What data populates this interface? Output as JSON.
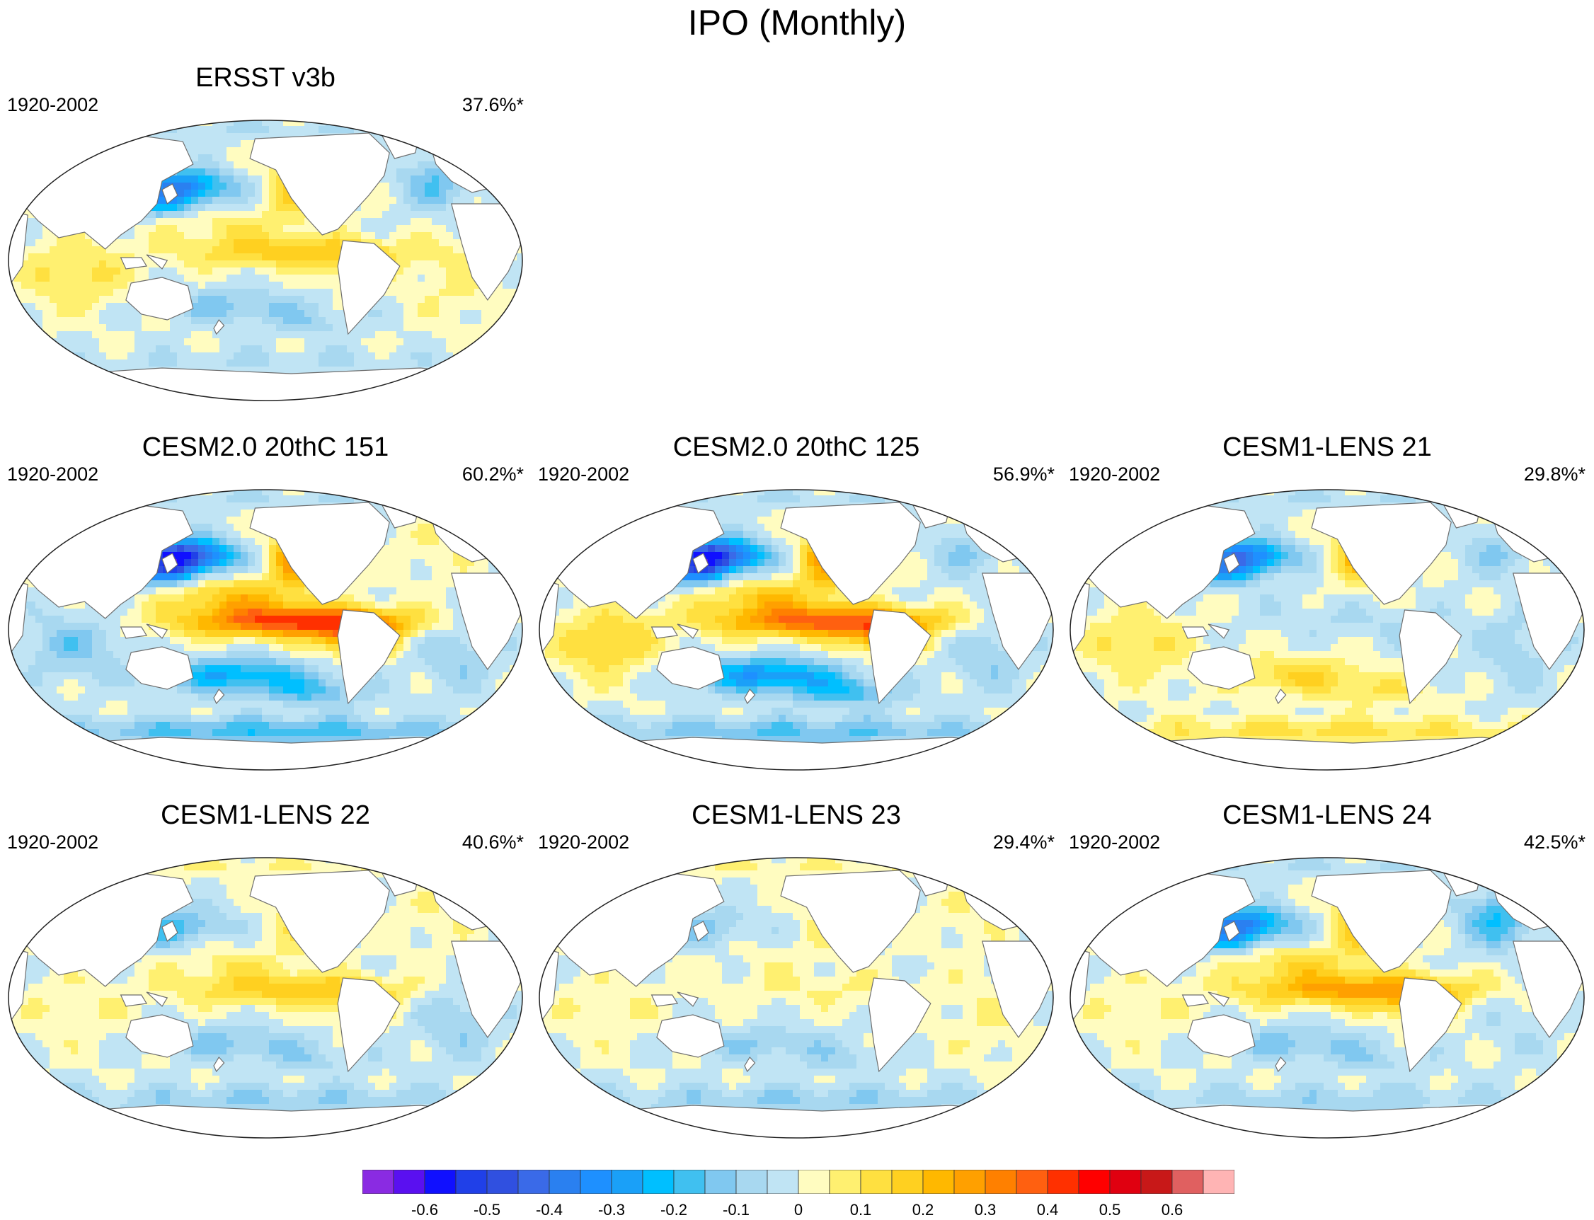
{
  "chart_data": {
    "type": "heatmap",
    "title": "IPO (Monthly)",
    "projection": "Robinson (Pacific-centered)",
    "panels": [
      {
        "title": "ERSST v3b",
        "period": "1920-2002",
        "variance": "37.6%*",
        "pattern": {
          "npac": -0.35,
          "trop": 0.18,
          "spac": -0.12,
          "ind": 0.12,
          "atl": 0.06,
          "natl": -0.15,
          "so": -0.05,
          "arctic": -0.05
        }
      },
      {
        "title": "CESM2.0 20thC 151",
        "period": "1920-2002",
        "variance": "60.2%*",
        "pattern": {
          "npac": -0.55,
          "trop": 0.42,
          "spac": -0.25,
          "ind": -0.12,
          "atl": -0.1,
          "natl": 0.05,
          "so": -0.18,
          "arctic": -0.05
        }
      },
      {
        "title": "CESM2.0 20thC 125",
        "period": "1920-2002",
        "variance": "56.9%*",
        "pattern": {
          "npac": -0.55,
          "trop": 0.38,
          "spac": -0.3,
          "ind": 0.15,
          "atl": -0.1,
          "natl": -0.1,
          "so": -0.15,
          "arctic": -0.05
        }
      },
      {
        "title": "CESM1-LENS 21",
        "period": "1920-2002",
        "variance": "29.8%*",
        "pattern": {
          "npac": -0.38,
          "trop": -0.05,
          "spac": 0.15,
          "ind": 0.12,
          "atl": -0.08,
          "natl": -0.1,
          "so": 0.12,
          "arctic": -0.05
        }
      },
      {
        "title": "CESM1-LENS 22",
        "period": "1920-2002",
        "variance": "40.6%*",
        "pattern": {
          "npac": -0.15,
          "trop": 0.18,
          "spac": -0.12,
          "ind": 0.05,
          "atl": -0.1,
          "natl": 0.05,
          "so": -0.1,
          "arctic": 0.05
        }
      },
      {
        "title": "CESM1-LENS 23",
        "period": "1920-2002",
        "variance": "29.4%*",
        "pattern": {
          "npac": -0.1,
          "trop": 0.05,
          "spac": -0.1,
          "ind": 0.05,
          "atl": 0.05,
          "natl": 0.05,
          "so": -0.1,
          "arctic": 0.05
        }
      },
      {
        "title": "CESM1-LENS 24",
        "period": "1920-2002",
        "variance": "42.5%*",
        "pattern": {
          "npac": -0.35,
          "trop": 0.28,
          "spac": -0.12,
          "ind": 0.05,
          "atl": -0.05,
          "natl": -0.2,
          "so": -0.08,
          "arctic": -0.05
        }
      }
    ],
    "colorbar": {
      "levels": [
        -0.65,
        -0.6,
        -0.55,
        -0.5,
        -0.45,
        -0.4,
        -0.35,
        -0.3,
        -0.25,
        -0.2,
        -0.15,
        -0.1,
        -0.05,
        0,
        0.05,
        0.1,
        0.15,
        0.2,
        0.25,
        0.3,
        0.35,
        0.4,
        0.45,
        0.5,
        0.55,
        0.6,
        0.65
      ],
      "colors": [
        "#8a2be2",
        "#5a10f0",
        "#1010ff",
        "#2040e8",
        "#3050e0",
        "#3a6ae8",
        "#2a80f0",
        "#1e90ff",
        "#1aa0f8",
        "#00bfff",
        "#40c0f0",
        "#80c8f0",
        "#a8d8f0",
        "#c0e4f4",
        "#fffcc0",
        "#fff070",
        "#ffe040",
        "#ffd020",
        "#ffb800",
        "#ffa000",
        "#ff8000",
        "#ff6010",
        "#ff3000",
        "#ff0000",
        "#e00010",
        "#c81818",
        "#e06060",
        "#ffb4b4"
      ],
      "tick_labels": [
        "-0.6",
        "-0.5",
        "-0.4",
        "-0.3",
        "-0.2",
        "-0.1",
        "0",
        "0.1",
        "0.2",
        "0.3",
        "0.4",
        "0.5",
        "0.6"
      ]
    }
  }
}
